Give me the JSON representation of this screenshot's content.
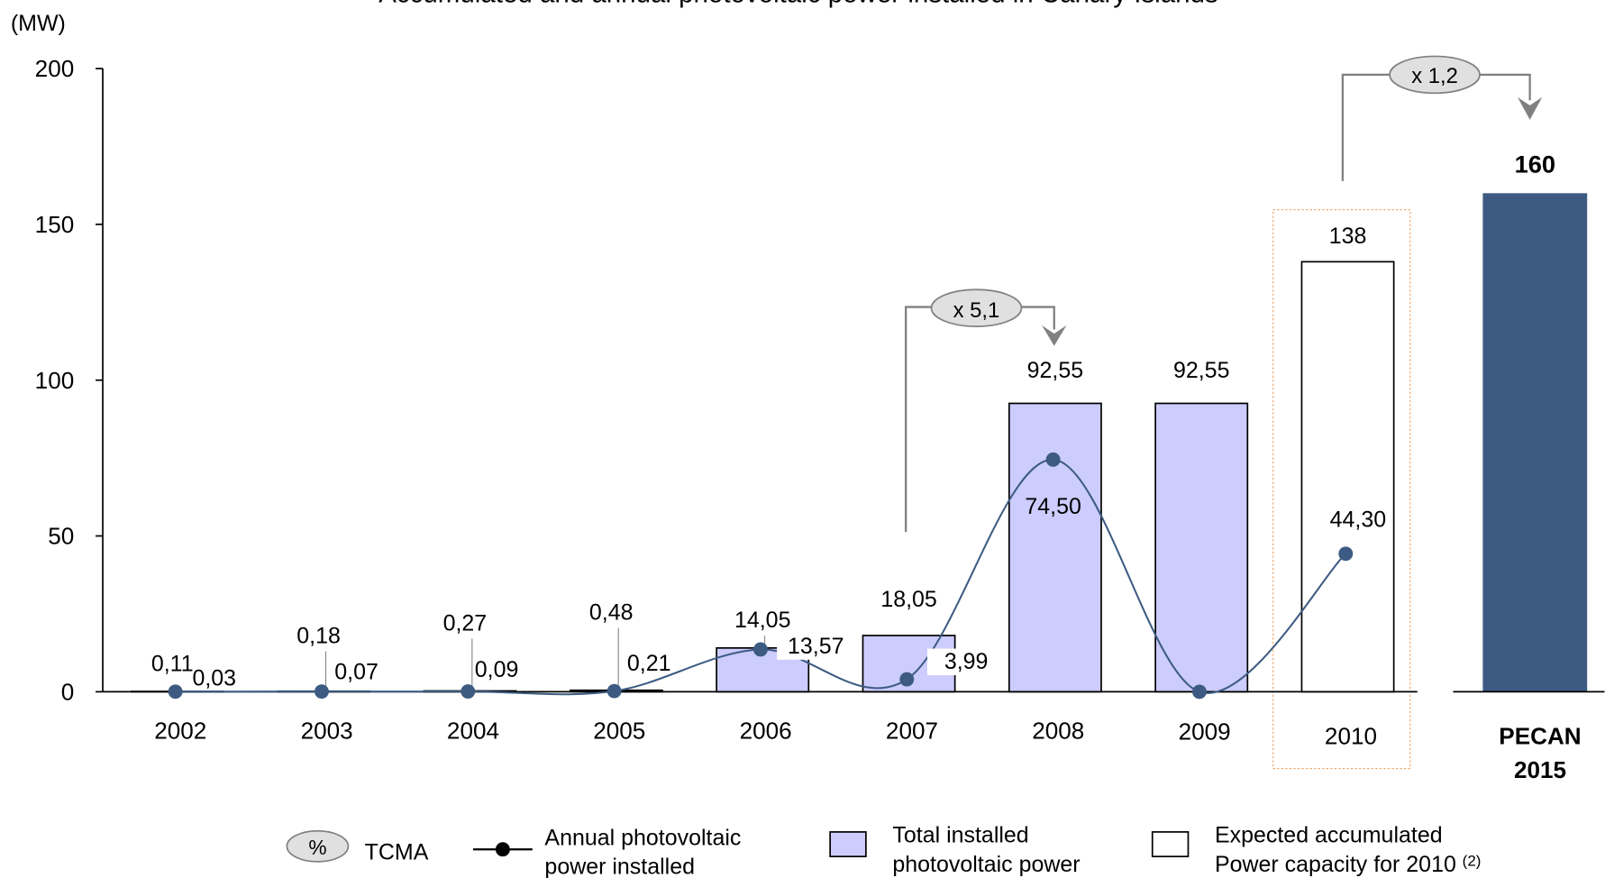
{
  "chart_data": {
    "type": "bar",
    "title": "Accumulated and annual photovoltaic power installed in Canary Islands",
    "y_label": "(MW)",
    "categories": [
      "2002",
      "2003",
      "2004",
      "2005",
      "2006",
      "2007",
      "2008",
      "2009",
      "2010",
      "PECAN 2015"
    ],
    "ylim": [
      0,
      200
    ],
    "yticks": [
      0,
      50,
      100,
      150,
      200
    ],
    "series": [
      {
        "name": "Total installed photovoltaic power",
        "type": "bar",
        "color": "#ccccff",
        "colors": [
          "#ccccff",
          "#ccccff",
          "#ccccff",
          "#ccccff",
          "#ccccff",
          "#ccccff",
          "#ccccff",
          "#ccccff",
          "#ffffff",
          "#3d5b82"
        ],
        "values": [
          0.11,
          0.18,
          0.27,
          0.48,
          14.05,
          18.05,
          92.55,
          92.55,
          138,
          160
        ],
        "value_labels": [
          "0,11",
          "0,18",
          "0,27",
          "0,48",
          "14,05",
          "18,05",
          "92,55",
          "92,55",
          "138",
          "160"
        ]
      },
      {
        "name": "Annual photovoltaic power installed",
        "type": "line",
        "color": "#3d5b82",
        "values": [
          0.03,
          0.07,
          0.09,
          0.21,
          13.57,
          3.99,
          74.5,
          0,
          44.3,
          null
        ],
        "value_labels": [
          "0,03",
          "0,07",
          "0,09",
          "0,21",
          "13,57",
          "3,99",
          "74,50",
          null,
          "44,30",
          null
        ]
      }
    ],
    "annotations": [
      "x 5,1",
      "x 1,2"
    ],
    "legend": {
      "tcma_symbol": "%",
      "tcma": "TCMA",
      "expected": "Expected accumulated Power capacity for 2010",
      "expected_note": "(2)"
    }
  }
}
